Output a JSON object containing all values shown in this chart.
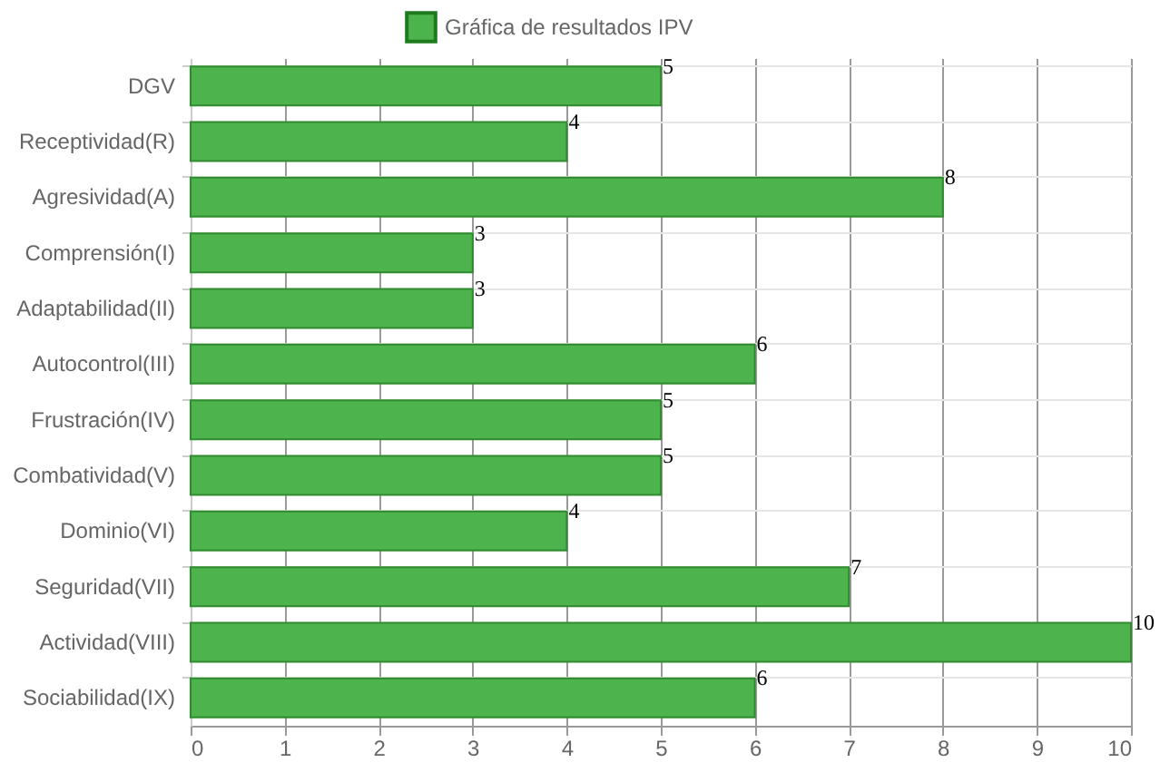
{
  "chart_data": {
    "type": "bar",
    "orientation": "horizontal",
    "categories": [
      "DGV",
      "Receptividad(R)",
      "Agresividad(A)",
      "Comprensión(I)",
      "Adaptabilidad(II)",
      "Autocontrol(III)",
      "Frustración(IV)",
      "Combatividad(V)",
      "Dominio(VI)",
      "Seguridad(VII)",
      "Actividad(VIII)",
      "Sociabilidad(IX)"
    ],
    "series": [
      {
        "name": "Gráfica de resultados IPV",
        "color": "#4db34d",
        "values": [
          5,
          4,
          8,
          3,
          3,
          6,
          5,
          5,
          4,
          7,
          10,
          6
        ]
      }
    ],
    "xlim": [
      0,
      10
    ],
    "xticks": [
      0,
      1,
      2,
      3,
      4,
      5,
      6,
      7,
      8,
      9,
      10
    ],
    "grid": true,
    "legend": "top",
    "data_labels": true
  }
}
